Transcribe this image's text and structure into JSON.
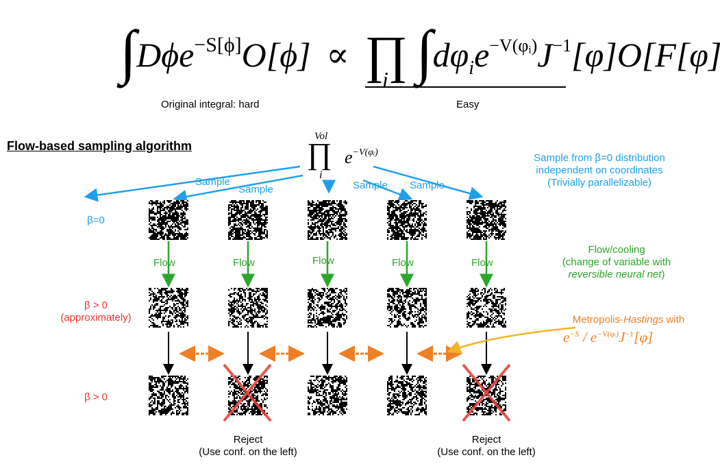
{
  "equation": {
    "lhs_integral": "∫",
    "lhs_body_D": "Dϕe",
    "lhs_exp": "−S[ϕ]",
    "lhs_obs": "O[ϕ]",
    "proportional": "∝",
    "prod": "∏",
    "prod_index": "i",
    "rhs_integral": "∫",
    "rhs_d": "dφ",
    "rhs_sub_i": "i",
    "rhs_e": "e",
    "rhs_exp": "−V(φᵢ)",
    "rhs_J": "J",
    "rhs_J_exp": "−1",
    "rhs_tail": "[φ]O[F[φ]]",
    "label_hard": "Original integral: hard",
    "label_easy": "Easy"
  },
  "section_title": "Flow-based sampling algorithm",
  "top_product": {
    "prod": "∏",
    "upper": "Vol",
    "lower": "i",
    "factor": "e",
    "exponent": "−V(φᵢ)"
  },
  "sample_labels": [
    "Sample",
    "Sample",
    "Sample",
    "Sample"
  ],
  "flow_labels": [
    "Flow",
    "Flow",
    "Flow",
    "Flow",
    "Flow"
  ],
  "row_labels": {
    "beta0": "β=0",
    "beta_approx_1": "β > 0",
    "beta_approx_2": "(approximately)",
    "beta_pos": "β > 0"
  },
  "notes": {
    "sample_line1": "Sample from β=0 distribution",
    "sample_line2": "independent on coordinates",
    "sample_line3": "(Trivially parallelizable)",
    "flow_line1": "Flow/cooling",
    "flow_line2": "(change of variable with",
    "flow_line3_italic": "reversible neural net",
    "flow_line3_end": ")",
    "mh_prefix": "Metropolis-",
    "mh_italic": "Hastings",
    "mh_suffix": " with",
    "mh_formula_e1": "e",
    "mh_formula_exp1": "−S",
    "mh_formula_mid": " / e",
    "mh_formula_exp2": "−V(φᵢ)",
    "mh_formula_J": "J",
    "mh_formula_Jexp": "−1",
    "mh_formula_end": "[φ]"
  },
  "reject_labels": [
    {
      "line1": "Reject",
      "line2": "(Use conf. on the left)"
    },
    {
      "line1": "Reject",
      "line2": "(Use conf. on the left)"
    }
  ],
  "colors": {
    "sample_blue": "#1f9fe9",
    "flow_green": "#2ca52c",
    "beta_red": "#e8362e",
    "mh_orange": "#f07f24",
    "reject_cross": "#e8453c"
  }
}
